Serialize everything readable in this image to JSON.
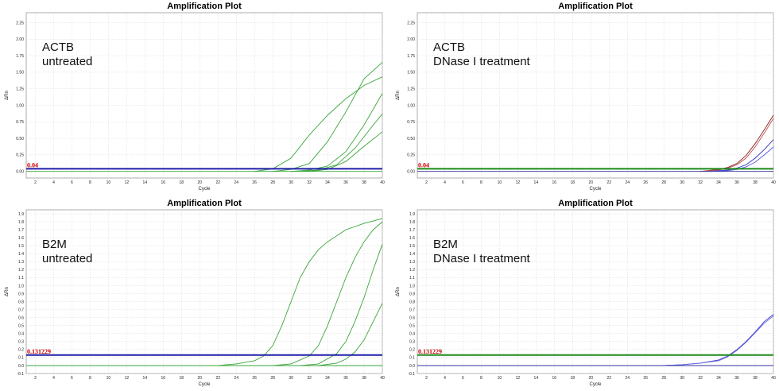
{
  "chart_data": [
    {
      "type": "line",
      "title": "Amplification Plot",
      "xlabel": "Cycle",
      "ylabel": "ΔRn",
      "annotation": [
        "ACTB",
        "untreated"
      ],
      "xlim": [
        1,
        40
      ],
      "ylim": [
        -0.1,
        2.4
      ],
      "xticks": [
        "2",
        "4",
        "6",
        "8",
        "10",
        "12",
        "14",
        "16",
        "18",
        "20",
        "22",
        "24",
        "26",
        "28",
        "30",
        "32",
        "34",
        "36",
        "38",
        "40"
      ],
      "yticks": [
        "0.00",
        "0.25",
        "0.50",
        "0.75",
        "1.00",
        "1.25",
        "1.50",
        "1.75",
        "2.00",
        "2.25"
      ],
      "threshold": {
        "label": "0.04",
        "value": 0.04,
        "color": "#1f1faa"
      },
      "grid": true,
      "series": [
        {
          "color": "#3aa53a",
          "x": [
            26,
            28,
            30,
            32,
            34,
            36,
            38,
            40
          ],
          "y": [
            0.0,
            0.04,
            0.2,
            0.55,
            0.85,
            1.1,
            1.3,
            1.43
          ]
        },
        {
          "color": "#3aa53a",
          "x": [
            28,
            30,
            32,
            34,
            36,
            38,
            40
          ],
          "y": [
            0.0,
            0.03,
            0.12,
            0.45,
            0.9,
            1.4,
            1.65
          ]
        },
        {
          "color": "#3aa53a",
          "x": [
            30,
            32,
            34,
            36,
            38,
            40
          ],
          "y": [
            0.0,
            0.02,
            0.08,
            0.3,
            0.7,
            1.18
          ]
        },
        {
          "color": "#3aa53a",
          "x": [
            31,
            33,
            35,
            37,
            39,
            40
          ],
          "y": [
            0.0,
            0.02,
            0.1,
            0.35,
            0.7,
            0.87
          ]
        },
        {
          "color": "#3aa53a",
          "x": [
            32,
            34,
            36,
            38,
            40
          ],
          "y": [
            0.0,
            0.03,
            0.15,
            0.38,
            0.6
          ]
        },
        {
          "color": "#3aa53a",
          "x": [
            1,
            40
          ],
          "y": [
            0.0,
            0.0
          ]
        }
      ]
    },
    {
      "type": "line",
      "title": "Amplification Plot",
      "xlabel": "Cycle",
      "ylabel": "ΔRn",
      "annotation": [
        "ACTB",
        "DNase I treatment"
      ],
      "xlim": [
        1,
        40
      ],
      "ylim": [
        -0.1,
        2.4
      ],
      "xticks": [
        "2",
        "4",
        "6",
        "8",
        "10",
        "12",
        "14",
        "16",
        "18",
        "20",
        "22",
        "24",
        "26",
        "28",
        "30",
        "32",
        "34",
        "36",
        "38",
        "40"
      ],
      "yticks": [
        "0.00",
        "0.25",
        "0.50",
        "0.75",
        "1.00",
        "1.25",
        "1.50",
        "1.75",
        "2.00",
        "2.25"
      ],
      "threshold": {
        "label": "0.04",
        "value": 0.04,
        "color": "#1a8a1a"
      },
      "grid": true,
      "series": [
        {
          "color": "#8b2020",
          "x": [
            32,
            34,
            35,
            36,
            37,
            38,
            39,
            40
          ],
          "y": [
            0.0,
            0.03,
            0.06,
            0.12,
            0.24,
            0.42,
            0.63,
            0.85
          ]
        },
        {
          "color": "#c05050",
          "x": [
            32,
            34,
            35,
            36,
            37,
            38,
            39,
            40
          ],
          "y": [
            0.0,
            0.02,
            0.05,
            0.1,
            0.2,
            0.37,
            0.58,
            0.8
          ]
        },
        {
          "color": "#3030c0",
          "x": [
            33,
            35,
            36,
            37,
            38,
            39,
            40
          ],
          "y": [
            0.0,
            0.02,
            0.05,
            0.1,
            0.2,
            0.33,
            0.48
          ]
        },
        {
          "color": "#5a5ad8",
          "x": [
            33,
            35,
            36,
            37,
            38,
            39,
            40
          ],
          "y": [
            0.0,
            0.01,
            0.03,
            0.07,
            0.14,
            0.25,
            0.37
          ]
        },
        {
          "color": "#3030a0",
          "x": [
            1,
            40
          ],
          "y": [
            0.0,
            0.0
          ]
        }
      ]
    },
    {
      "type": "line",
      "title": "Amplification Plot",
      "xlabel": "Cycle",
      "ylabel": "ΔRn",
      "annotation": [
        "B2M",
        "untreated"
      ],
      "xlim": [
        1,
        40
      ],
      "ylim": [
        -0.1,
        1.95
      ],
      "xticks": [
        "2",
        "4",
        "6",
        "8",
        "10",
        "12",
        "14",
        "16",
        "18",
        "20",
        "22",
        "24",
        "26",
        "28",
        "30",
        "32",
        "34",
        "36",
        "38",
        "40"
      ],
      "yticks": [
        "-0.1",
        "0.0",
        "0.1",
        "0.2",
        "0.3",
        "0.4",
        "0.5",
        "0.6",
        "0.7",
        "0.8",
        "0.9",
        "1.0",
        "1.1",
        "1.2",
        "1.3",
        "1.4",
        "1.5",
        "1.6",
        "1.7",
        "1.8",
        "1.9"
      ],
      "threshold": {
        "label": "0.131229",
        "value": 0.131229,
        "color": "#1f1faa"
      },
      "grid": true,
      "series": [
        {
          "color": "#3aa53a",
          "x": [
            22,
            24,
            26,
            27,
            28,
            29,
            30,
            31,
            32,
            33,
            34,
            36,
            38,
            40
          ],
          "y": [
            0.0,
            0.02,
            0.06,
            0.12,
            0.25,
            0.5,
            0.8,
            1.1,
            1.3,
            1.45,
            1.55,
            1.7,
            1.78,
            1.84
          ]
        },
        {
          "color": "#3aa53a",
          "x": [
            28,
            30,
            32,
            33,
            34,
            35,
            36,
            37,
            38,
            39,
            40
          ],
          "y": [
            0.0,
            0.02,
            0.12,
            0.25,
            0.5,
            0.8,
            1.1,
            1.35,
            1.55,
            1.7,
            1.8
          ]
        },
        {
          "color": "#3aa53a",
          "x": [
            31,
            33,
            35,
            36,
            37,
            38,
            39,
            40
          ],
          "y": [
            0.0,
            0.02,
            0.15,
            0.3,
            0.55,
            0.85,
            1.2,
            1.52
          ]
        },
        {
          "color": "#3aa53a",
          "x": [
            33,
            35,
            36,
            37,
            38,
            39,
            40
          ],
          "y": [
            0.0,
            0.03,
            0.08,
            0.17,
            0.32,
            0.55,
            0.78
          ]
        },
        {
          "color": "#3aa53a",
          "x": [
            1,
            40
          ],
          "y": [
            0.0,
            0.0
          ]
        }
      ]
    },
    {
      "type": "line",
      "title": "Amplification Plot",
      "xlabel": "Cycle",
      "ylabel": "ΔRn",
      "annotation": [
        "B2M",
        "DNase I treatment"
      ],
      "xlim": [
        1,
        40
      ],
      "ylim": [
        -0.1,
        1.95
      ],
      "xticks": [
        "2",
        "4",
        "6",
        "8",
        "10",
        "12",
        "14",
        "16",
        "18",
        "20",
        "22",
        "24",
        "26",
        "28",
        "30",
        "32",
        "34",
        "36",
        "38",
        "40"
      ],
      "yticks": [
        "-0.1",
        "0.0",
        "0.1",
        "0.2",
        "0.3",
        "0.4",
        "0.5",
        "0.6",
        "0.7",
        "0.8",
        "0.9",
        "1.0",
        "1.1",
        "1.2",
        "1.3",
        "1.4",
        "1.5",
        "1.6",
        "1.7",
        "1.8",
        "1.9"
      ],
      "threshold": {
        "label": "0.131229",
        "value": 0.131229,
        "color": "#1a8a1a"
      },
      "grid": true,
      "series": [
        {
          "color": "#3b3bc8",
          "x": [
            28,
            30,
            32,
            34,
            35,
            36,
            37,
            38,
            39,
            40
          ],
          "y": [
            0.0,
            0.01,
            0.03,
            0.07,
            0.12,
            0.2,
            0.3,
            0.42,
            0.55,
            0.64
          ]
        },
        {
          "color": "#6a6ae0",
          "x": [
            28,
            30,
            32,
            34,
            35,
            36,
            37,
            38,
            39,
            40
          ],
          "y": [
            0.0,
            0.01,
            0.03,
            0.06,
            0.11,
            0.19,
            0.29,
            0.41,
            0.53,
            0.62
          ]
        },
        {
          "color": "#3030a0",
          "x": [
            1,
            40
          ],
          "y": [
            0.0,
            0.0
          ]
        }
      ]
    }
  ]
}
